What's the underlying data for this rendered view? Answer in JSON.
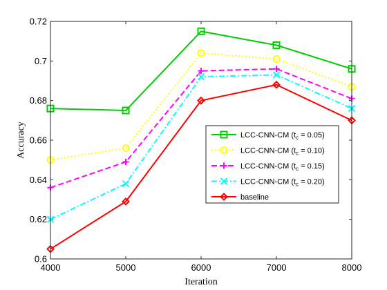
{
  "chart_data": {
    "type": "line",
    "title": "",
    "xlabel": "Iteration",
    "ylabel": "Accuracy",
    "x": [
      4000,
      5000,
      6000,
      7000,
      8000
    ],
    "x_ticks": [
      "4000",
      "5000",
      "6000",
      "7000",
      "8000"
    ],
    "y_ticks": [
      "0.6",
      "0.62",
      "0.64",
      "0.66",
      "0.68",
      "0.7",
      "0.72"
    ],
    "xlim": [
      4000,
      8000
    ],
    "ylim": [
      0.6,
      0.72
    ],
    "grid": false,
    "legend_position": "center-right",
    "series": [
      {
        "name": "LCC-CNN-CM (t_c = 0.05)",
        "name_parts": [
          "LCC-CNN-CM (t",
          "c",
          " = 0.05)"
        ],
        "values": [
          0.676,
          0.675,
          0.715,
          0.708,
          0.696
        ],
        "color": "#00cc00",
        "dash": "solid",
        "marker": "square"
      },
      {
        "name": "LCC-CNN-CM (t_c = 0.10)",
        "name_parts": [
          "LCC-CNN-CM (t",
          "c",
          " = 0.10)"
        ],
        "values": [
          0.65,
          0.656,
          0.704,
          0.701,
          0.687
        ],
        "color": "#ffff00",
        "dash": "dotted",
        "marker": "circle"
      },
      {
        "name": "LCC-CNN-CM (t_c = 0.15)",
        "name_parts": [
          "LCC-CNN-CM (t",
          "c",
          " = 0.15)"
        ],
        "values": [
          0.636,
          0.649,
          0.695,
          0.696,
          0.681
        ],
        "color": "#ff00ff",
        "dash": "dashed",
        "marker": "plus"
      },
      {
        "name": "LCC-CNN-CM (t_c = 0.20)",
        "name_parts": [
          "LCC-CNN-CM (t",
          "c",
          " = 0.20)"
        ],
        "values": [
          0.62,
          0.638,
          0.692,
          0.693,
          0.676
        ],
        "color": "#00ffff",
        "dash": "dashdot",
        "marker": "x"
      },
      {
        "name": "baseline",
        "name_parts": [
          "baseline"
        ],
        "values": [
          0.605,
          0.629,
          0.68,
          0.688,
          0.67
        ],
        "color": "#ff0000",
        "dash": "solid",
        "marker": "diamond"
      }
    ]
  }
}
